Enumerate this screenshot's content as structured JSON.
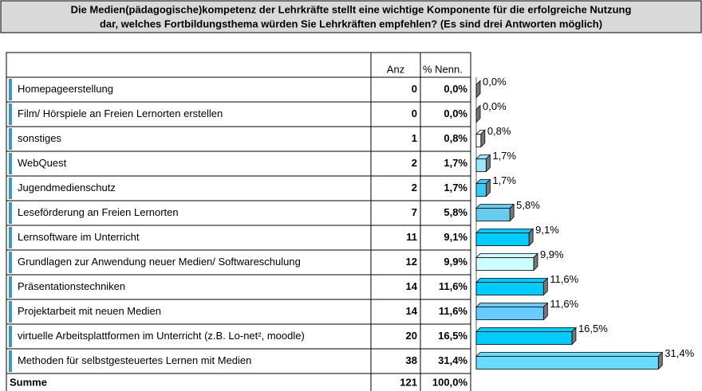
{
  "chart_data": {
    "type": "bar",
    "title": [
      "Die Medien(pädagogische)kompetenz der Lehrkräfte stellt eine wichtige Komponente für die erfolgreiche Nutzung",
      "dar, welches Fortbildungsthema würden Sie Lehrkräften empfehlen? (Es sind drei Antworten möglich)"
    ],
    "columns": [
      "Anz",
      "% Nenn."
    ],
    "categories": [
      "Homepageerstellung",
      "Film/ Hörspiele an Freien Lernorten erstellen",
      "sonstiges",
      "WebQuest",
      "Jugendmedienschutz",
      "Leseförderung an Freien Lernorten",
      "Lernsoftware im Unterricht",
      "Grundlagen zur Anwendung neuer Medien/ Softwareschulung",
      "Präsentationstechniken",
      "Projektarbeit mit neuen Medien",
      "virtuelle Arbeitsplattformen im Unterricht (z.B. Lo-net², moodle)",
      "Methoden für selbstgesteuertes Lernen mit Medien"
    ],
    "counts": [
      0,
      0,
      1,
      2,
      2,
      7,
      11,
      12,
      14,
      14,
      20,
      38
    ],
    "values": [
      0,
      0,
      0.8,
      1.7,
      1.7,
      5.8,
      9.1,
      9.9,
      11.6,
      11.6,
      16.5,
      31.4
    ],
    "value_labels": [
      "0,0%",
      "0,0%",
      "0,8%",
      "1,7%",
      "1,7%",
      "5,8%",
      "9,1%",
      "9,9%",
      "11,6%",
      "11,6%",
      "16,5%",
      "31,4%"
    ],
    "colors": [
      "#66ccff",
      "#33ccff",
      "#f4ffff",
      "#99e6ff",
      "#33ccff",
      "#66ccee",
      "#00ccff",
      "#ccffff",
      "#00ccff",
      "#66ccff",
      "#00ccff",
      "#66ddff"
    ],
    "total_label": "Summe",
    "total_count": 121,
    "total_percent": {
      "value": 100,
      "label": "100,0%"
    }
  }
}
